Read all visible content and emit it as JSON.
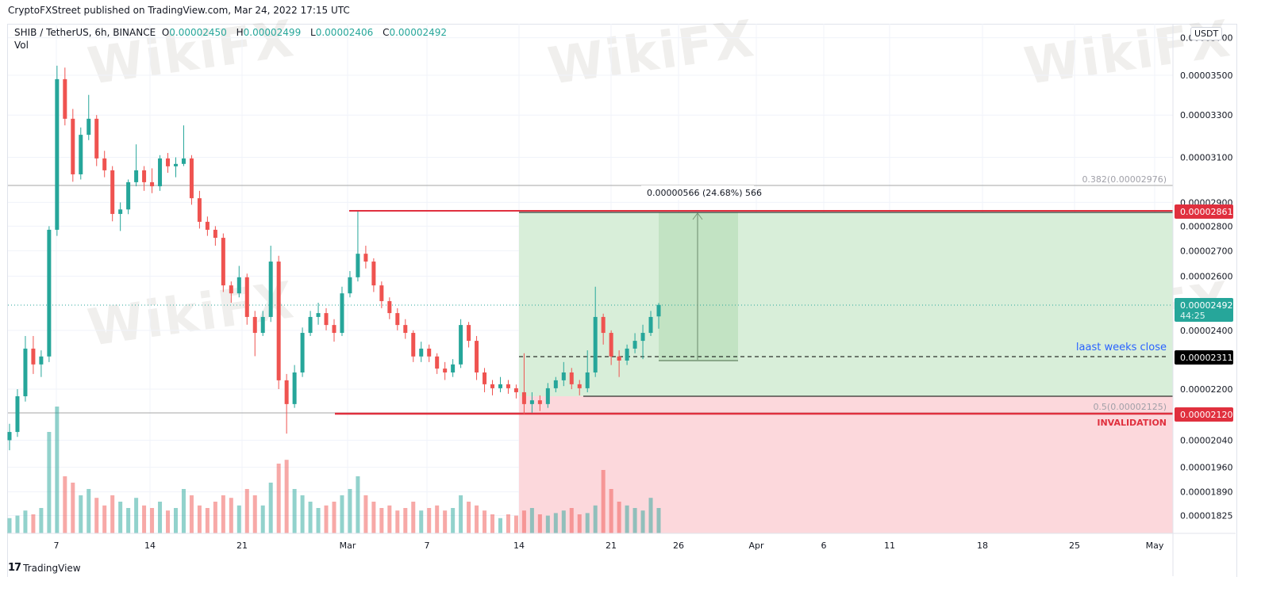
{
  "published": "CryptoFXStreet published on TradingView.com, Mar 24, 2022 17:15 UTC",
  "legend": {
    "symbol": "SHIB / TetherUS, 6h, BINANCE",
    "o_label": "O",
    "o": "0.00002450",
    "h_label": "H",
    "h": "0.00002499",
    "l_label": "L",
    "l": "0.00002406",
    "c_label": "C",
    "c": "0.00002492",
    "vol": "Vol"
  },
  "currency_badge": "USDT",
  "footer": {
    "logo": "TradingView"
  },
  "watermark": "WikiFX",
  "colors": {
    "up": "#26a69a",
    "down": "#ef5350",
    "target_zone": "#d8eed9",
    "stop_zone": "#fcd8dc",
    "red_line": "#e0303e",
    "note_text": "#2962ff"
  },
  "chart_data": {
    "type": "candlestick",
    "interval": "6h",
    "y_scale": "log",
    "ylim": [
      1.78e-05,
      3.75e-05
    ],
    "y_ticks": [
      "0.00003700",
      "0.00003500",
      "0.00003300",
      "0.00003100",
      "0.00002900",
      "0.00002800",
      "0.00002700",
      "0.00002600",
      "0.00002400",
      "0.00002200",
      "0.00002040",
      "0.00001960",
      "0.00001890",
      "0.00001825"
    ],
    "x_ticks": [
      "7",
      "14",
      "21",
      "Mar",
      "7",
      "14",
      "21",
      "26",
      "Apr",
      "6",
      "11",
      "18",
      "25",
      "May"
    ],
    "candles": [
      [
        2.04e-05,
        2.09e-05,
        2.01e-05,
        2.065e-05
      ],
      [
        2.065e-05,
        2.2e-05,
        2.05e-05,
        2.177e-05
      ],
      [
        2.177e-05,
        2.38e-05,
        2.16e-05,
        2.336e-05
      ],
      [
        2.336e-05,
        2.38e-05,
        2.25e-05,
        2.282e-05
      ],
      [
        2.282e-05,
        2.33e-05,
        2.24e-05,
        2.309e-05
      ],
      [
        2.309e-05,
        2.8e-05,
        2.29e-05,
        2.785e-05
      ],
      [
        2.785e-05,
        3.55e-05,
        2.76e-05,
        3.48e-05
      ],
      [
        3.48e-05,
        3.54e-05,
        3.25e-05,
        3.282e-05
      ],
      [
        3.282e-05,
        3.33e-05,
        2.99e-05,
        3.023e-05
      ],
      [
        3.023e-05,
        3.24e-05,
        3e-05,
        3.205e-05
      ],
      [
        3.205e-05,
        3.4e-05,
        3.18e-05,
        3.282e-05
      ],
      [
        3.282e-05,
        3.3e-05,
        3.06e-05,
        3.095e-05
      ],
      [
        3.095e-05,
        3.13e-05,
        3.01e-05,
        3.041e-05
      ],
      [
        3.041e-05,
        3.06e-05,
        2.82e-05,
        2.851e-05
      ],
      [
        2.851e-05,
        2.9e-05,
        2.78e-05,
        2.87e-05
      ],
      [
        2.87e-05,
        3e-05,
        2.85e-05,
        2.988e-05
      ],
      [
        2.988e-05,
        3.16e-05,
        2.97e-05,
        3.041e-05
      ],
      [
        3.041e-05,
        3.06e-05,
        2.95e-05,
        2.988e-05
      ],
      [
        2.988e-05,
        3.05e-05,
        2.94e-05,
        2.97e-05
      ],
      [
        2.97e-05,
        3.11e-05,
        2.95e-05,
        3.095e-05
      ],
      [
        3.095e-05,
        3.12e-05,
        3.03e-05,
        3.059e-05
      ],
      [
        3.059e-05,
        3.1e-05,
        3.01e-05,
        3.07e-05
      ],
      [
        3.07e-05,
        3.25e-05,
        3.06e-05,
        3.095e-05
      ],
      [
        3.095e-05,
        3.11e-05,
        2.89e-05,
        2.918e-05
      ],
      [
        2.918e-05,
        2.95e-05,
        2.79e-05,
        2.818e-05
      ],
      [
        2.818e-05,
        2.84e-05,
        2.76e-05,
        2.785e-05
      ],
      [
        2.785e-05,
        2.8e-05,
        2.72e-05,
        2.752e-05
      ],
      [
        2.752e-05,
        2.77e-05,
        2.54e-05,
        2.565e-05
      ],
      [
        2.565e-05,
        2.58e-05,
        2.5e-05,
        2.535e-05
      ],
      [
        2.535e-05,
        2.64e-05,
        2.52e-05,
        2.596e-05
      ],
      [
        2.596e-05,
        2.61e-05,
        2.42e-05,
        2.448e-05
      ],
      [
        2.448e-05,
        2.47e-05,
        2.31e-05,
        2.391e-05
      ],
      [
        2.391e-05,
        2.47e-05,
        2.38e-05,
        2.448e-05
      ],
      [
        2.448e-05,
        2.72e-05,
        2.43e-05,
        2.657e-05
      ],
      [
        2.657e-05,
        2.68e-05,
        2.2e-05,
        2.229e-05
      ],
      [
        2.229e-05,
        2.25e-05,
        2.06e-05,
        2.152e-05
      ],
      [
        2.152e-05,
        2.28e-05,
        2.14e-05,
        2.255e-05
      ],
      [
        2.255e-05,
        2.41e-05,
        2.24e-05,
        2.391e-05
      ],
      [
        2.391e-05,
        2.47e-05,
        2.38e-05,
        2.448e-05
      ],
      [
        2.448e-05,
        2.5e-05,
        2.42e-05,
        2.462e-05
      ],
      [
        2.462e-05,
        2.48e-05,
        2.4e-05,
        2.419e-05
      ],
      [
        2.419e-05,
        2.44e-05,
        2.36e-05,
        2.391e-05
      ],
      [
        2.391e-05,
        2.56e-05,
        2.38e-05,
        2.535e-05
      ],
      [
        2.535e-05,
        2.62e-05,
        2.52e-05,
        2.596e-05
      ],
      [
        2.596e-05,
        2.861e-05,
        2.58e-05,
        2.688e-05
      ],
      [
        2.688e-05,
        2.72e-05,
        2.63e-05,
        2.657e-05
      ],
      [
        2.657e-05,
        2.67e-05,
        2.54e-05,
        2.565e-05
      ],
      [
        2.565e-05,
        2.58e-05,
        2.48e-05,
        2.506e-05
      ],
      [
        2.506e-05,
        2.52e-05,
        2.44e-05,
        2.462e-05
      ],
      [
        2.462e-05,
        2.48e-05,
        2.4e-05,
        2.419e-05
      ],
      [
        2.419e-05,
        2.44e-05,
        2.37e-05,
        2.391e-05
      ],
      [
        2.391e-05,
        2.4e-05,
        2.29e-05,
        2.309e-05
      ],
      [
        2.309e-05,
        2.36e-05,
        2.29e-05,
        2.336e-05
      ],
      [
        2.336e-05,
        2.35e-05,
        2.29e-05,
        2.309e-05
      ],
      [
        2.309e-05,
        2.32e-05,
        2.25e-05,
        2.268e-05
      ],
      [
        2.268e-05,
        2.29e-05,
        2.23e-05,
        2.255e-05
      ],
      [
        2.255e-05,
        2.3e-05,
        2.24e-05,
        2.282e-05
      ],
      [
        2.282e-05,
        2.44e-05,
        2.27e-05,
        2.419e-05
      ],
      [
        2.419e-05,
        2.43e-05,
        2.34e-05,
        2.363e-05
      ],
      [
        2.363e-05,
        2.38e-05,
        2.23e-05,
        2.255e-05
      ],
      [
        2.255e-05,
        2.27e-05,
        2.19e-05,
        2.216e-05
      ],
      [
        2.216e-05,
        2.23e-05,
        2.18e-05,
        2.203e-05
      ],
      [
        2.203e-05,
        2.24e-05,
        2.19e-05,
        2.216e-05
      ],
      [
        2.216e-05,
        2.23e-05,
        2.185e-05,
        2.203e-05
      ],
      [
        2.203e-05,
        2.215e-05,
        2.17e-05,
        2.19e-05
      ],
      [
        2.19e-05,
        2.32e-05,
        2.12e-05,
        2.152e-05
      ],
      [
        2.152e-05,
        2.19e-05,
        2.125e-05,
        2.164e-05
      ],
      [
        2.164e-05,
        2.18e-05,
        2.13e-05,
        2.152e-05
      ],
      [
        2.152e-05,
        2.22e-05,
        2.14e-05,
        2.203e-05
      ],
      [
        2.203e-05,
        2.24e-05,
        2.19e-05,
        2.229e-05
      ],
      [
        2.229e-05,
        2.29e-05,
        2.21e-05,
        2.255e-05
      ],
      [
        2.255e-05,
        2.27e-05,
        2.2e-05,
        2.216e-05
      ],
      [
        2.216e-05,
        2.23e-05,
        2.18e-05,
        2.203e-05
      ],
      [
        2.203e-05,
        2.33e-05,
        2.19e-05,
        2.255e-05
      ],
      [
        2.255e-05,
        2.56e-05,
        2.24e-05,
        2.448e-05
      ],
      [
        2.448e-05,
        2.46e-05,
        2.35e-05,
        2.391e-05
      ],
      [
        2.391e-05,
        2.4e-05,
        2.28e-05,
        2.309e-05
      ],
      [
        2.309e-05,
        2.33e-05,
        2.24e-05,
        2.295e-05
      ],
      [
        2.295e-05,
        2.35e-05,
        2.28e-05,
        2.336e-05
      ],
      [
        2.336e-05,
        2.39e-05,
        2.32e-05,
        2.363e-05
      ],
      [
        2.363e-05,
        2.42e-05,
        2.3e-05,
        2.391e-05
      ],
      [
        2.391e-05,
        2.47e-05,
        2.38e-05,
        2.448e-05
      ],
      [
        2.45e-05,
        2.499e-05,
        2.406e-05,
        2.492e-05
      ]
    ],
    "volume_relative": [
      12,
      14,
      18,
      15,
      20,
      80,
      100,
      45,
      40,
      30,
      35,
      28,
      22,
      30,
      25,
      20,
      28,
      22,
      20,
      25,
      18,
      20,
      35,
      30,
      22,
      20,
      25,
      30,
      28,
      22,
      35,
      30,
      22,
      40,
      55,
      58,
      35,
      30,
      25,
      20,
      22,
      25,
      30,
      35,
      45,
      30,
      25,
      20,
      22,
      18,
      20,
      25,
      18,
      20,
      22,
      18,
      20,
      30,
      25,
      22,
      18,
      15,
      12,
      15,
      14,
      18,
      20,
      15,
      14,
      16,
      18,
      20,
      15,
      16,
      22,
      50,
      35,
      25,
      22,
      20,
      18,
      28,
      20
    ],
    "last_price": {
      "value": "0.00002492",
      "countdown": "44:25"
    },
    "annotations": {
      "fib_0382": "0.382(0.00002976)",
      "fib_05": "0.5(0.00002125)",
      "resistance": "0.00002861",
      "last_week_close": {
        "text": "laast weeks close",
        "value": "0.00002311"
      },
      "invalidation": {
        "text": "INVALIDATION",
        "value": "0.00002120"
      },
      "measure": "0.00000566 (24.68%) 566"
    }
  }
}
